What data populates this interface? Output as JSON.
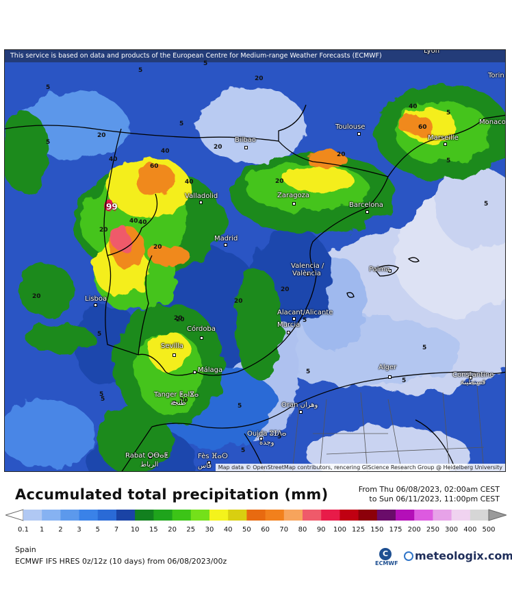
{
  "map": {
    "notice": "This service is based on data and products of the European Centre for Medium-range Weather Forecasts (ECMWF)",
    "attribution": "Map data © OpenStreetMap contributors, rencering GIScience Research Group @ Heidelberg University",
    "cities": [
      {
        "name": "Lyon"
      },
      {
        "name": "Torin"
      },
      {
        "name": "Toulouse"
      },
      {
        "name": "Monaco"
      },
      {
        "name": "Bilbao"
      },
      {
        "name": "Marseille"
      },
      {
        "name": "Valladolid"
      },
      {
        "name": "Zaragoza"
      },
      {
        "name": "Barcelona"
      },
      {
        "name": "Madrid"
      },
      {
        "name": "Valencia /"
      },
      {
        "name": "València"
      },
      {
        "name": "Palma"
      },
      {
        "name": "Lisboa"
      },
      {
        "name": "Alacant/Alicante"
      },
      {
        "name": "Murcia"
      },
      {
        "name": "Córdoba"
      },
      {
        "name": "Sevilla"
      },
      {
        "name": "Málaga"
      },
      {
        "name": "Alger"
      },
      {
        "name": "Constantine"
      },
      {
        "name": "قسنطينة"
      },
      {
        "name": "Tanger ⵟⴰⵏⴵⴰ"
      },
      {
        "name": "طنجة"
      },
      {
        "name": "Oran وهران"
      },
      {
        "name": "Oujda ⵓⵊⴷⴰ"
      },
      {
        "name": "وجدة"
      },
      {
        "name": "Rabat ⵔⴱⴰⵟ"
      },
      {
        "name": "الرباط"
      },
      {
        "name": "Fès ⴼⴰⵙ"
      },
      {
        "name": "فاس"
      }
    ],
    "contour_labels": [
      "5",
      "20",
      "40",
      "20",
      "5",
      "20",
      "40",
      "60",
      "40",
      "20",
      "5",
      "20",
      "40",
      "20",
      "5",
      "20",
      "40",
      "20",
      "5",
      "20",
      "5",
      "20",
      "5",
      "20",
      "5",
      "20",
      "5",
      "5",
      "5",
      "5",
      "5",
      "20",
      "5",
      "5",
      "5",
      "5",
      "40",
      "5",
      "60",
      "99"
    ]
  },
  "title": "Accumulated total precipitation (mm)",
  "period": {
    "from": "From Thu 06/08/2023, 02:00am CEST",
    "to": "to Sun 06/11/2023, 11:00pm CEST"
  },
  "legend": {
    "ticks": [
      "0.1",
      "1",
      "2",
      "3",
      "5",
      "7",
      "10",
      "15",
      "20",
      "25",
      "30",
      "40",
      "50",
      "60",
      "70",
      "80",
      "90",
      "100",
      "125",
      "150",
      "175",
      "200",
      "250",
      "300",
      "400",
      "500"
    ],
    "colors": [
      "#d5d9ef",
      "#b0c8f3",
      "#86b2f2",
      "#5c99ec",
      "#3a82e8",
      "#2a6ad6",
      "#1a43a5",
      "#12801f",
      "#1fa41c",
      "#3cc417",
      "#74e01a",
      "#f4f31c",
      "#d9cf10",
      "#e86a10",
      "#f2801c",
      "#f7a45c",
      "#ef5a6a",
      "#e81b49",
      "#c00012",
      "#8c000a",
      "#6a0c6a",
      "#b40fb8",
      "#dd5ae0",
      "#e7a2e8",
      "#f0d3f0",
      "#d6d6d6",
      "#9a9a9a"
    ]
  },
  "region": "Spain",
  "model": "ECMWF IFS HRES 0z/12z (10 days) from 06/08/2023/00z",
  "logos": {
    "ecmwf": "ECMWF",
    "brand": "meteologix.com"
  }
}
